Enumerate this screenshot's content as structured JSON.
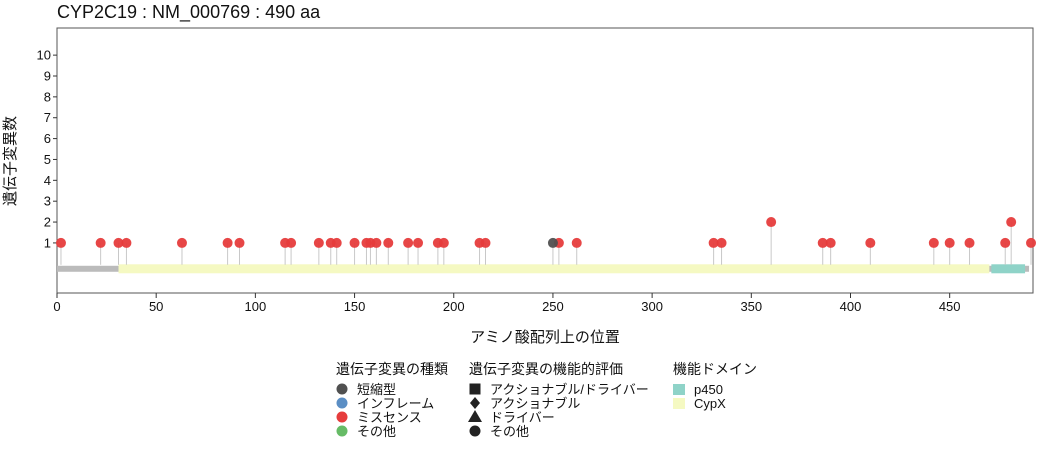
{
  "chart_data": {
    "type": "scatter",
    "subtype": "lollipop",
    "title": "CYP2C19 : NM_000769 : 490 aa",
    "xlabel": "アミノ酸配列上の位置",
    "ylabel": "遺伝子変異数",
    "xlim": [
      0,
      492
    ],
    "ylim": [
      -1.4,
      11.3
    ],
    "x_ticks": [
      0,
      50,
      100,
      150,
      200,
      250,
      300,
      350,
      400,
      450
    ],
    "y_ticks": [
      1,
      2,
      3,
      4,
      5,
      6,
      7,
      8,
      9,
      10
    ],
    "protein_length": 490,
    "backbone_color": "#bbbbbb",
    "series": [
      {
        "name": "ミスセンス",
        "color": "#e63c3c",
        "points": [
          {
            "x": 2,
            "y": 1
          },
          {
            "x": 22,
            "y": 1
          },
          {
            "x": 31,
            "y": 1
          },
          {
            "x": 35,
            "y": 1
          },
          {
            "x": 63,
            "y": 1
          },
          {
            "x": 86,
            "y": 1
          },
          {
            "x": 92,
            "y": 1
          },
          {
            "x": 115,
            "y": 1
          },
          {
            "x": 118,
            "y": 1
          },
          {
            "x": 132,
            "y": 1
          },
          {
            "x": 138,
            "y": 1
          },
          {
            "x": 141,
            "y": 1
          },
          {
            "x": 150,
            "y": 1
          },
          {
            "x": 156,
            "y": 1
          },
          {
            "x": 158,
            "y": 1
          },
          {
            "x": 161,
            "y": 1
          },
          {
            "x": 167,
            "y": 1
          },
          {
            "x": 177,
            "y": 1
          },
          {
            "x": 182,
            "y": 1
          },
          {
            "x": 192,
            "y": 1
          },
          {
            "x": 195,
            "y": 1
          },
          {
            "x": 213,
            "y": 1
          },
          {
            "x": 216,
            "y": 1
          },
          {
            "x": 253,
            "y": 1
          },
          {
            "x": 262,
            "y": 1
          },
          {
            "x": 331,
            "y": 1
          },
          {
            "x": 335,
            "y": 1
          },
          {
            "x": 360,
            "y": 2
          },
          {
            "x": 386,
            "y": 1
          },
          {
            "x": 390,
            "y": 1
          },
          {
            "x": 410,
            "y": 1
          },
          {
            "x": 442,
            "y": 1
          },
          {
            "x": 450,
            "y": 1
          },
          {
            "x": 460,
            "y": 1
          },
          {
            "x": 478,
            "y": 1
          },
          {
            "x": 481,
            "y": 2
          },
          {
            "x": 491,
            "y": 1
          }
        ]
      },
      {
        "name": "短縮型",
        "color": "#505050",
        "points": [
          {
            "x": 250,
            "y": 1
          }
        ]
      }
    ],
    "domains": [
      {
        "name": "CypX",
        "start": 31,
        "end": 470,
        "color": "#f5f9c2"
      },
      {
        "name": "p450",
        "start": 471,
        "end": 488,
        "color": "#8fd3c8"
      }
    ],
    "legend_placement": "bottom",
    "legend_groups": [
      {
        "title": "遺伝子変異の種類",
        "items": [
          {
            "label": "短縮型",
            "symbol": "circle",
            "color": "#505050"
          },
          {
            "label": "インフレーム",
            "symbol": "circle",
            "color": "#5b8ec4"
          },
          {
            "label": "ミスセンス",
            "symbol": "circle",
            "color": "#e63c3c"
          },
          {
            "label": "その他",
            "symbol": "circle",
            "color": "#66bb66"
          }
        ]
      },
      {
        "title": "遺伝子変異の機能的評価",
        "items": [
          {
            "label": "アクショナブル/ドライバー",
            "symbol": "square",
            "color": "#222222"
          },
          {
            "label": "アクショナブル",
            "symbol": "diamond",
            "color": "#222222"
          },
          {
            "label": "ドライバー",
            "symbol": "triangle",
            "color": "#222222"
          },
          {
            "label": "その他",
            "symbol": "circle",
            "color": "#222222"
          }
        ]
      },
      {
        "title": "機能ドメイン",
        "items": [
          {
            "label": "p450",
            "symbol": "rect",
            "color": "#8fd3c8"
          },
          {
            "label": "CypX",
            "symbol": "rect",
            "color": "#f5f9c2"
          }
        ]
      }
    ],
    "grid": false
  }
}
